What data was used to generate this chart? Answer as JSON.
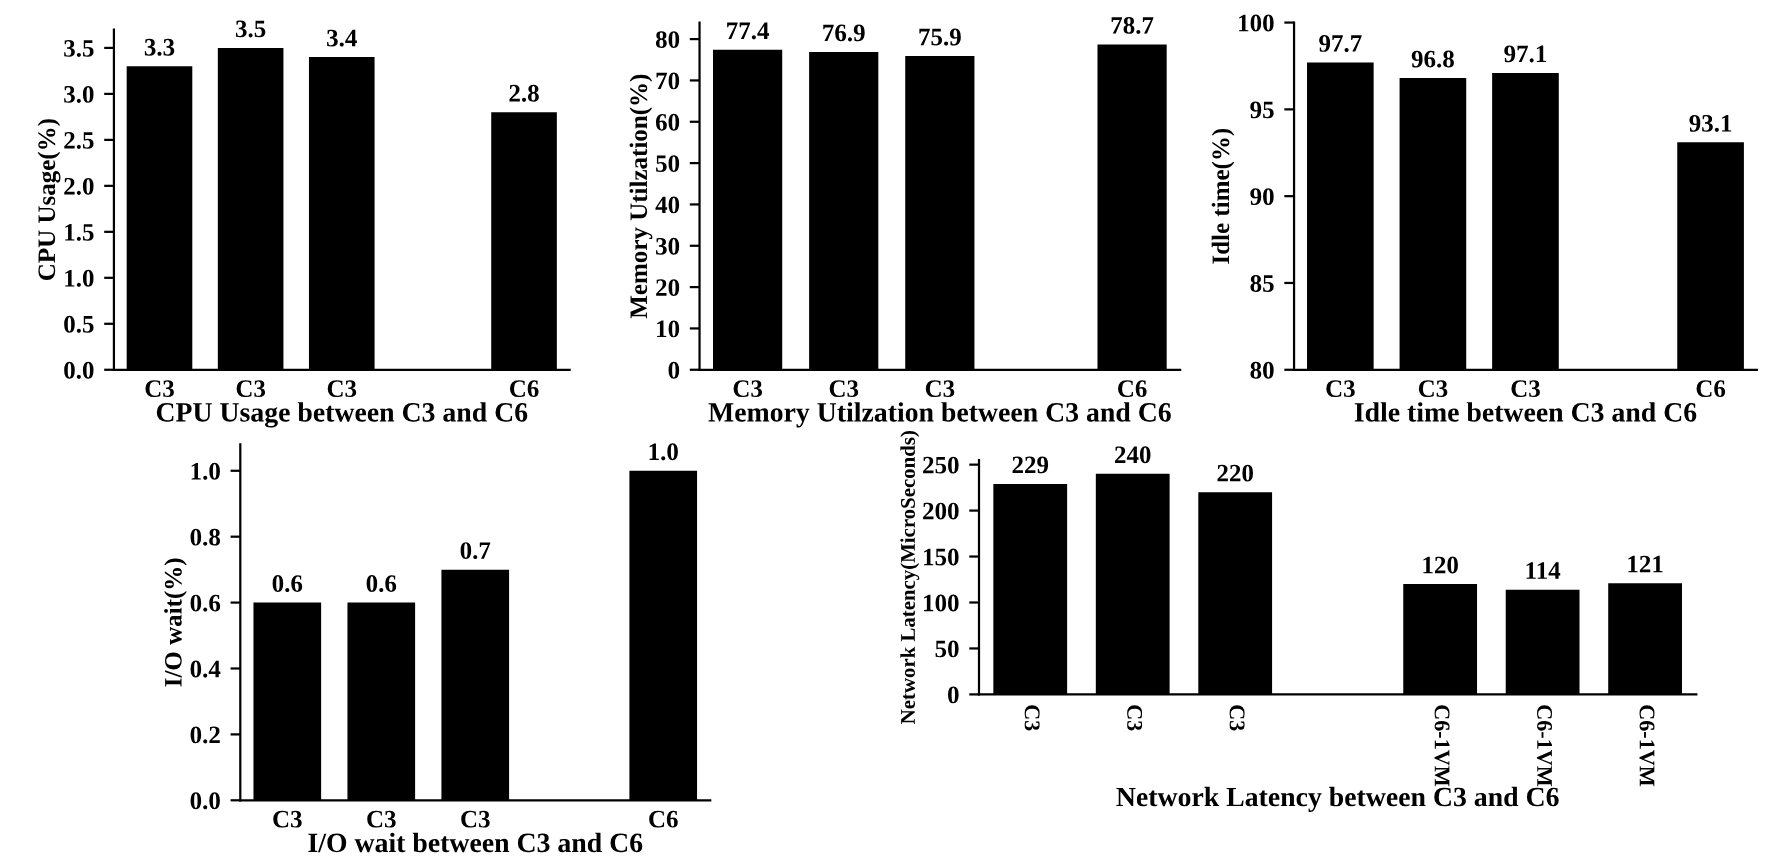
{
  "chart_data": [
    {
      "type": "bar",
      "xlabel": "CPU Usage between C3 and C6",
      "ylabel": "CPU Usage(%)",
      "categories": [
        "C3",
        "C3",
        "C3",
        null,
        "C6"
      ],
      "values": [
        3.3,
        3.5,
        3.4,
        null,
        2.8
      ],
      "color": "#000000",
      "ylim": [
        0,
        3.7
      ],
      "yticks": [
        {
          "value": 0,
          "label": "0.0"
        },
        0.5,
        {
          "value": 1,
          "label": "1.0"
        },
        1.5,
        {
          "value": 2,
          "label": "2.0"
        },
        2.5,
        {
          "value": 3,
          "label": "3.0"
        },
        3.5
      ],
      "data_labels": true,
      "grid": false,
      "legend": false
    },
    {
      "type": "bar",
      "xlabel": "Memory Utilzation between C3 and C6",
      "ylabel": "Memory Utilzation(%)",
      "categories": [
        "C3",
        "C3",
        "C3",
        null,
        "C6"
      ],
      "values": [
        77.4,
        76.9,
        75.9,
        null,
        78.7
      ],
      "color": "#000000",
      "ylim": [
        0,
        84
      ],
      "yticks": [
        0,
        10,
        20,
        30,
        40,
        50,
        60,
        70,
        80
      ],
      "data_labels": true,
      "grid": false,
      "legend": false
    },
    {
      "type": "bar",
      "xlabel": "Idle time between C3 and C6",
      "ylabel": "Idle time(%)",
      "categories": [
        "C3",
        "C3",
        "C3",
        null,
        "C6"
      ],
      "values": [
        97.7,
        96.8,
        97.1,
        null,
        93.1
      ],
      "color": "#000000",
      "ylim": [
        80,
        100
      ],
      "yticks": [
        80,
        85,
        90,
        95,
        100
      ],
      "data_labels": true,
      "grid": false,
      "legend": false
    },
    {
      "type": "bar",
      "xlabel": "I/O wait between C3 and C6",
      "ylabel": "I/O wait(%)",
      "categories": [
        "C3",
        "C3",
        "C3",
        null,
        "C6"
      ],
      "values": [
        0.6,
        0.6,
        0.7,
        null,
        1.0
      ],
      "value_labels": [
        "0.6",
        "0.6",
        "0.7",
        null,
        "1.0"
      ],
      "color": "#000000",
      "ylim": [
        0,
        1.08
      ],
      "yticks": [
        {
          "value": 0,
          "label": "0.0"
        },
        0.2,
        0.4,
        0.6,
        0.8,
        {
          "value": 1,
          "label": "1.0"
        }
      ],
      "grid": false,
      "legend": false
    },
    {
      "type": "bar",
      "xlabel": "Network Latency between C3 and C6",
      "ylabel": "Network Latency(MicroSeconds)",
      "categories": [
        "C3",
        "C3",
        "C3",
        null,
        "C6-1VM",
        "C6-1VM",
        "C6-1VM"
      ],
      "values": [
        229,
        240,
        220,
        null,
        120,
        114,
        121
      ],
      "color": "#000000",
      "ylim": [
        0,
        255
      ],
      "yticks": [
        0,
        50,
        100,
        150,
        200,
        250
      ],
      "data_labels": true,
      "grid": false,
      "legend": false
    }
  ]
}
